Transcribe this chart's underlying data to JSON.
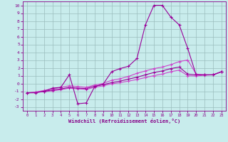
{
  "xlabel": "Windchill (Refroidissement éolien,°C)",
  "xlim": [
    -0.5,
    23.5
  ],
  "ylim": [
    -3.5,
    10.5
  ],
  "xticks": [
    0,
    1,
    2,
    3,
    4,
    5,
    6,
    7,
    8,
    9,
    10,
    11,
    12,
    13,
    14,
    15,
    16,
    17,
    18,
    19,
    20,
    21,
    22,
    23
  ],
  "yticks": [
    -3,
    -2,
    -1,
    0,
    1,
    2,
    3,
    4,
    5,
    6,
    7,
    8,
    9,
    10
  ],
  "bg_color": "#c8ecec",
  "grid_color": "#9bbdbd",
  "line_color_dark": "#990099",
  "line_color_light": "#cc44cc",
  "spike_y": [
    -1.2,
    -1.2,
    -1.0,
    -0.6,
    -0.5,
    1.1,
    -2.6,
    -2.5,
    -0.4,
    -0.1,
    1.5,
    1.9,
    2.2,
    3.2,
    7.5,
    10.0,
    10.0,
    8.5,
    7.5,
    4.5,
    1.1,
    1.1,
    1.1,
    1.5
  ],
  "line1_y": [
    -1.2,
    -1.1,
    -0.9,
    -0.7,
    -0.5,
    -0.3,
    -0.4,
    -0.5,
    -0.2,
    0.0,
    0.4,
    0.6,
    0.9,
    1.3,
    1.6,
    1.9,
    2.1,
    2.4,
    2.8,
    3.0,
    1.2,
    1.1,
    1.1,
    1.5
  ],
  "line2_y": [
    -1.2,
    -1.15,
    -1.0,
    -0.85,
    -0.7,
    -0.5,
    -0.6,
    -0.65,
    -0.35,
    -0.15,
    0.1,
    0.3,
    0.55,
    0.8,
    1.1,
    1.4,
    1.6,
    1.9,
    2.1,
    1.2,
    1.1,
    1.1,
    1.1,
    1.5
  ],
  "line3_y": [
    -1.2,
    -1.15,
    -1.05,
    -0.95,
    -0.8,
    -0.6,
    -0.7,
    -0.75,
    -0.5,
    -0.3,
    -0.05,
    0.1,
    0.3,
    0.5,
    0.75,
    1.0,
    1.2,
    1.5,
    1.7,
    1.0,
    0.95,
    1.05,
    1.1,
    1.5
  ],
  "lw": 0.8,
  "ms": 2.5,
  "mew": 0.8
}
